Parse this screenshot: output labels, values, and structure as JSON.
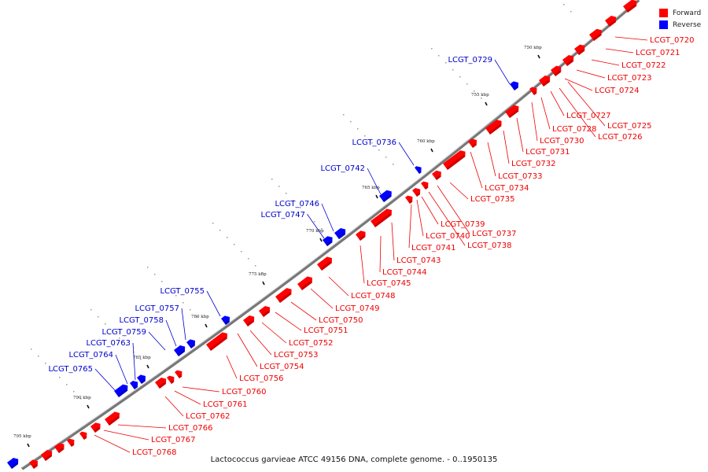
{
  "legend": {
    "forward_label": "Forward",
    "reverse_label": "Reverse",
    "forward_color": "#ff0000",
    "reverse_color": "#0000ff"
  },
  "caption": "Lactococcus garvieae ATCC 49156 DNA, complete genome. - 0..1950135",
  "ticks": [
    "750 kbp",
    "755 kbp",
    "760 kbp",
    "765 kbp",
    "770 kbp",
    "775 kbp",
    "780 kbp",
    "785 kbp",
    "790 kbp",
    "795 kbp"
  ],
  "forward_genes": [
    "LCGT_0720",
    "LCGT_0721",
    "LCGT_0722",
    "LCGT_0723",
    "LCGT_0724",
    "LCGT_0725",
    "LCGT_0726",
    "LCGT_0727",
    "LCGT_0728",
    "LCGT_0730",
    "LCGT_0731",
    "LCGT_0732",
    "LCGT_0733",
    "LCGT_0734",
    "LCGT_0735",
    "LCGT_0737",
    "LCGT_0738",
    "LCGT_0739",
    "LCGT_0740",
    "LCGT_0741",
    "LCGT_0743",
    "LCGT_0744",
    "LCGT_0745",
    "LCGT_0748",
    "LCGT_0749",
    "LCGT_0750",
    "LCGT_0751",
    "LCGT_0752",
    "LCGT_0753",
    "LCGT_0754",
    "LCGT_0756",
    "LCGT_0760",
    "LCGT_0761",
    "LCGT_0762",
    "LCGT_0766",
    "LCGT_0767",
    "LCGT_0768"
  ],
  "reverse_genes": [
    "LCGT_0729",
    "LCGT_0736",
    "LCGT_0742",
    "LCGT_0746",
    "LCGT_0747",
    "LCGT_0755",
    "LCGT_0757",
    "LCGT_0758",
    "LCGT_0759",
    "LCGT_0763",
    "LCGT_0764",
    "LCGT_0765"
  ]
}
